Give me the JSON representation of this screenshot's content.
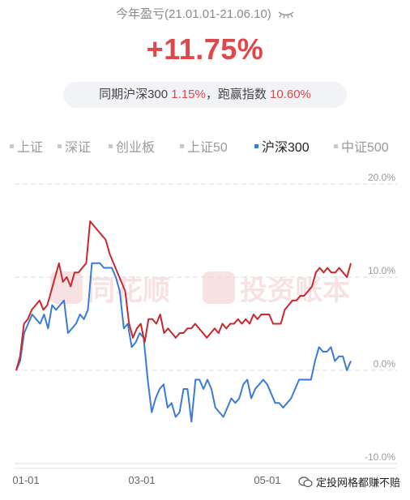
{
  "header": {
    "period_label": "今年盈亏(21.01.01-21.06.10)",
    "eye_icon": "eye-closed-icon",
    "return_value": "+11.75%",
    "compare_prefix": "同期沪深300 ",
    "compare_index_return": "1.15%",
    "compare_mid": "，跑赢指数 ",
    "compare_excess": "10.60%"
  },
  "tabs": [
    {
      "label": "上证",
      "active": false
    },
    {
      "label": "深证",
      "active": false
    },
    {
      "label": "创业板",
      "active": false
    },
    {
      "label": "上证50",
      "active": false
    },
    {
      "label": "沪深300",
      "active": true
    },
    {
      "label": "中证500",
      "active": false
    }
  ],
  "watermark": {
    "brand1": "同花顺",
    "brand2": "投资账本"
  },
  "footer": {
    "text": "定投网格都赚不赔"
  },
  "colors": {
    "portfolio": "#c8282e",
    "index": "#3a7bd5",
    "accent": "#e0474a"
  },
  "chart_data": {
    "type": "line",
    "x_ticks": [
      "01-01",
      "03-01",
      "05-01"
    ],
    "y_ticks": [
      "20.0%",
      "10.0%",
      "0.0%",
      "-10.0%"
    ],
    "ylim": [
      -10,
      20
    ],
    "grid": true,
    "series": [
      {
        "name": "",
        "color": "#c8282e",
        "values": [
          0,
          1.5,
          5,
          5.5,
          6.5,
          7,
          7.5,
          6.5,
          7,
          8.5,
          10,
          11.5,
          9.5,
          10,
          9,
          10.5,
          10.5,
          11,
          11.5,
          16,
          15.5,
          15,
          14.5,
          14,
          12.5,
          11.5,
          10.5,
          9.5,
          8.5,
          5,
          3.5,
          4.5,
          5,
          3,
          5.5,
          5.5,
          5,
          6,
          4,
          4.5,
          4,
          3.5,
          4,
          4,
          4.5,
          4.5,
          5,
          4.5,
          4,
          3.5,
          4,
          4.5,
          4,
          5,
          4.5,
          5,
          5,
          5.5,
          5,
          5.5,
          5,
          6,
          5.5,
          6,
          6,
          6,
          5,
          5,
          5,
          6.5,
          7,
          7.5,
          7.5,
          8,
          8,
          8.5,
          9,
          10.5,
          11,
          10.5,
          11,
          10.5,
          10.5,
          11,
          10.5,
          10,
          11.5
        ]
      },
      {
        "name": "沪深300",
        "color": "#3a7bd5",
        "values": [
          0,
          1,
          4,
          5,
          6,
          5.5,
          5,
          6,
          4.5,
          7,
          6.5,
          7,
          7.5,
          4,
          4.5,
          5,
          6,
          5.5,
          6.5,
          11.5,
          11.5,
          11.5,
          11,
          11,
          11,
          10,
          8.5,
          4.5,
          5,
          2.5,
          3,
          4,
          3.5,
          -1,
          -4.5,
          -3,
          -2,
          -1.5,
          -4,
          -3.5,
          -5,
          -4.5,
          -2,
          -2,
          -5.5,
          -1,
          -1,
          -2,
          -1,
          -2,
          -4,
          -4.5,
          -5,
          -4,
          -3,
          -3.5,
          -3,
          -1.5,
          -1,
          -3,
          -2,
          -1.5,
          -1,
          -1.5,
          -2.5,
          -3.5,
          -3.5,
          -4,
          -3.5,
          -3,
          -2,
          -1,
          -1,
          -1,
          -1,
          1,
          2.5,
          2,
          2,
          2.5,
          1,
          1.5,
          1.5,
          0,
          1
        ]
      }
    ]
  }
}
